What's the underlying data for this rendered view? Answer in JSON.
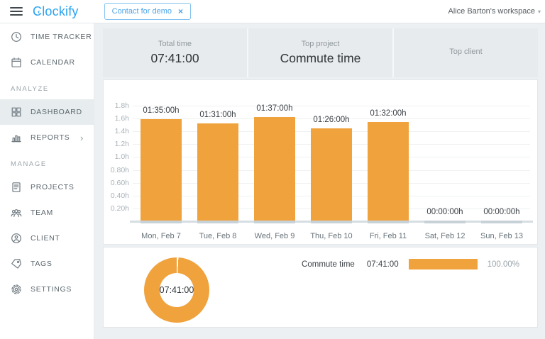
{
  "header": {
    "logo": "lockify",
    "logo_c": "C",
    "logo_hands": "‹",
    "demo_button": {
      "label": "Contact for demo",
      "close_glyph": "×"
    },
    "workspace": "Alice Barton's workspace",
    "workspace_caret": "▾"
  },
  "sidebar": {
    "time_tracker": "TIME TRACKER",
    "calendar": "CALENDAR",
    "section_analyze": "ANALYZE",
    "dashboard": "DASHBOARD",
    "reports": "REPORTS",
    "reports_chevron": "›",
    "section_manage": "MANAGE",
    "projects": "PROJECTS",
    "team": "TEAM",
    "client": "CLIENT",
    "tags": "TAGS",
    "settings": "SETTINGS"
  },
  "cards": {
    "total_time": {
      "label": "Total time",
      "value": "07:41:00"
    },
    "top_project": {
      "label": "Top project",
      "value": "Commute time"
    },
    "top_client": {
      "label": "Top client",
      "value": ""
    }
  },
  "colors": {
    "accent_orange": "#f0a23d",
    "logo_blue": "#2aa3f2",
    "zero_bar": "#c6d1d8"
  },
  "chart_data": [
    {
      "type": "bar",
      "categories": [
        "Mon, Feb 7",
        "Tue, Feb 8",
        "Wed, Feb 9",
        "Thu, Feb 10",
        "Fri, Feb 11",
        "Sat, Feb 12",
        "Sun, Feb 13"
      ],
      "values_hours": [
        1.5833,
        1.5167,
        1.6167,
        1.4333,
        1.5333,
        0,
        0
      ],
      "bar_labels": [
        "01:35:00h",
        "01:31:00h",
        "01:37:00h",
        "01:26:00h",
        "01:32:00h",
        "00:00:00h",
        "00:00:00h"
      ],
      "y_ticks": [
        "1.8h",
        "1.6h",
        "1.4h",
        "1.2h",
        "1.0h",
        "0.80h",
        "0.60h",
        "0.40h",
        "0.20h"
      ],
      "ylim": [
        0,
        1.8
      ],
      "grid": true,
      "legend": "none",
      "bar_color": "#f0a23d"
    },
    {
      "type": "pie",
      "subtype": "donut",
      "center_label": "07:41:00",
      "slices": [
        {
          "name": "Commute time",
          "value": "07:41:00",
          "percent": "100.00%",
          "color": "#f0a23d"
        }
      ],
      "legend": "right"
    }
  ]
}
